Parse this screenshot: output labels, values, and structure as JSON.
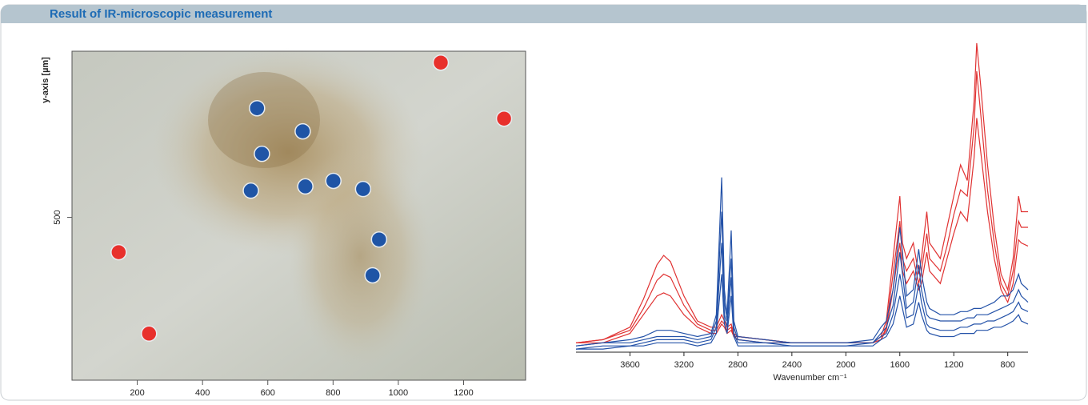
{
  "header": {
    "title": "Result of IR-microscopic measurement"
  },
  "chart_data": [
    {
      "type": "scatter",
      "y_label": "y-axis [µm]",
      "xlim": [
        0,
        1390
      ],
      "ylim": [
        0,
        1010
      ],
      "xticks": [
        200,
        400,
        600,
        800,
        1000,
        1200
      ],
      "yticks": [
        500
      ],
      "series": [
        {
          "color": "#1f55a6",
          "x": [
            567,
            707,
            582,
            548,
            715,
            801,
            892,
            941,
            921
          ],
          "y": [
            835,
            764,
            695,
            582,
            595,
            612,
            587,
            432,
            322
          ]
        },
        {
          "color": "#e8302c",
          "x": [
            1130,
            1324,
            143,
            236
          ],
          "y": [
            975,
            803,
            393,
            143
          ]
        }
      ]
    },
    {
      "type": "line",
      "x_label": "Wavenumber cm⁻¹",
      "xlim": [
        4000,
        650
      ],
      "ylim": [
        0,
        1
      ],
      "xticks": [
        3600,
        3200,
        2800,
        2400,
        2000,
        1600,
        1200,
        800
      ],
      "x": [
        4000,
        3800,
        3600,
        3500,
        3400,
        3350,
        3300,
        3200,
        3100,
        3000,
        2960,
        2920,
        2900,
        2880,
        2850,
        2830,
        2800,
        2600,
        2400,
        2200,
        2000,
        1800,
        1740,
        1700,
        1650,
        1600,
        1580,
        1550,
        1500,
        1460,
        1440,
        1400,
        1380,
        1300,
        1250,
        1200,
        1150,
        1100,
        1050,
        1030,
        1000,
        950,
        900,
        850,
        800,
        760,
        720,
        700,
        650
      ],
      "series": [
        {
          "color": "#e03232",
          "values": [
            0.03,
            0.04,
            0.08,
            0.17,
            0.28,
            0.31,
            0.29,
            0.18,
            0.1,
            0.08,
            0.08,
            0.12,
            0.1,
            0.08,
            0.09,
            0.06,
            0.05,
            0.04,
            0.03,
            0.03,
            0.03,
            0.03,
            0.05,
            0.1,
            0.3,
            0.5,
            0.35,
            0.3,
            0.35,
            0.25,
            0.3,
            0.45,
            0.35,
            0.3,
            0.4,
            0.5,
            0.6,
            0.55,
            0.8,
            0.99,
            0.85,
            0.6,
            0.4,
            0.25,
            0.2,
            0.3,
            0.5,
            0.45,
            0.45
          ]
        },
        {
          "color": "#e03232",
          "values": [
            0.03,
            0.04,
            0.07,
            0.14,
            0.23,
            0.25,
            0.24,
            0.15,
            0.09,
            0.07,
            0.07,
            0.1,
            0.09,
            0.07,
            0.08,
            0.05,
            0.05,
            0.04,
            0.03,
            0.03,
            0.03,
            0.03,
            0.04,
            0.08,
            0.25,
            0.42,
            0.3,
            0.26,
            0.3,
            0.22,
            0.26,
            0.38,
            0.3,
            0.26,
            0.34,
            0.44,
            0.52,
            0.5,
            0.72,
            0.9,
            0.76,
            0.52,
            0.35,
            0.22,
            0.18,
            0.26,
            0.42,
            0.4,
            0.4
          ]
        },
        {
          "color": "#e03232",
          "values": [
            0.03,
            0.03,
            0.06,
            0.12,
            0.18,
            0.19,
            0.18,
            0.12,
            0.08,
            0.06,
            0.06,
            0.09,
            0.08,
            0.06,
            0.07,
            0.05,
            0.04,
            0.03,
            0.03,
            0.03,
            0.03,
            0.03,
            0.04,
            0.07,
            0.2,
            0.35,
            0.26,
            0.22,
            0.26,
            0.2,
            0.22,
            0.32,
            0.26,
            0.22,
            0.3,
            0.38,
            0.45,
            0.42,
            0.62,
            0.75,
            0.64,
            0.45,
            0.3,
            0.2,
            0.16,
            0.22,
            0.36,
            0.35,
            0.34
          ]
        },
        {
          "color": "#2452a8",
          "values": [
            0.02,
            0.03,
            0.04,
            0.05,
            0.07,
            0.07,
            0.07,
            0.06,
            0.05,
            0.06,
            0.12,
            0.56,
            0.2,
            0.12,
            0.39,
            0.1,
            0.05,
            0.04,
            0.03,
            0.03,
            0.03,
            0.04,
            0.08,
            0.1,
            0.2,
            0.4,
            0.32,
            0.18,
            0.2,
            0.33,
            0.25,
            0.16,
            0.14,
            0.12,
            0.12,
            0.12,
            0.13,
            0.13,
            0.14,
            0.14,
            0.14,
            0.15,
            0.16,
            0.18,
            0.18,
            0.2,
            0.25,
            0.22,
            0.2
          ]
        },
        {
          "color": "#2452a8",
          "values": [
            0.02,
            0.03,
            0.03,
            0.04,
            0.05,
            0.05,
            0.05,
            0.05,
            0.04,
            0.05,
            0.1,
            0.45,
            0.16,
            0.1,
            0.3,
            0.08,
            0.04,
            0.03,
            0.03,
            0.03,
            0.03,
            0.03,
            0.06,
            0.08,
            0.15,
            0.32,
            0.25,
            0.14,
            0.16,
            0.28,
            0.2,
            0.12,
            0.11,
            0.1,
            0.1,
            0.1,
            0.1,
            0.11,
            0.11,
            0.12,
            0.12,
            0.12,
            0.13,
            0.14,
            0.15,
            0.16,
            0.2,
            0.18,
            0.16
          ]
        },
        {
          "color": "#2452a8",
          "values": [
            0.01,
            0.02,
            0.02,
            0.03,
            0.04,
            0.04,
            0.04,
            0.04,
            0.03,
            0.04,
            0.08,
            0.35,
            0.12,
            0.08,
            0.24,
            0.06,
            0.03,
            0.03,
            0.02,
            0.02,
            0.02,
            0.03,
            0.05,
            0.06,
            0.12,
            0.25,
            0.2,
            0.11,
            0.12,
            0.22,
            0.16,
            0.09,
            0.08,
            0.07,
            0.07,
            0.07,
            0.08,
            0.08,
            0.09,
            0.09,
            0.09,
            0.1,
            0.1,
            0.11,
            0.12,
            0.13,
            0.16,
            0.14,
            0.13
          ]
        },
        {
          "color": "#2452a8",
          "values": [
            0.01,
            0.01,
            0.02,
            0.02,
            0.03,
            0.03,
            0.03,
            0.03,
            0.02,
            0.03,
            0.06,
            0.25,
            0.09,
            0.06,
            0.18,
            0.05,
            0.02,
            0.02,
            0.02,
            0.02,
            0.02,
            0.02,
            0.04,
            0.05,
            0.09,
            0.18,
            0.14,
            0.08,
            0.09,
            0.16,
            0.12,
            0.07,
            0.06,
            0.05,
            0.05,
            0.05,
            0.06,
            0.06,
            0.06,
            0.07,
            0.07,
            0.07,
            0.08,
            0.08,
            0.09,
            0.1,
            0.12,
            0.1,
            0.09
          ]
        }
      ]
    }
  ]
}
